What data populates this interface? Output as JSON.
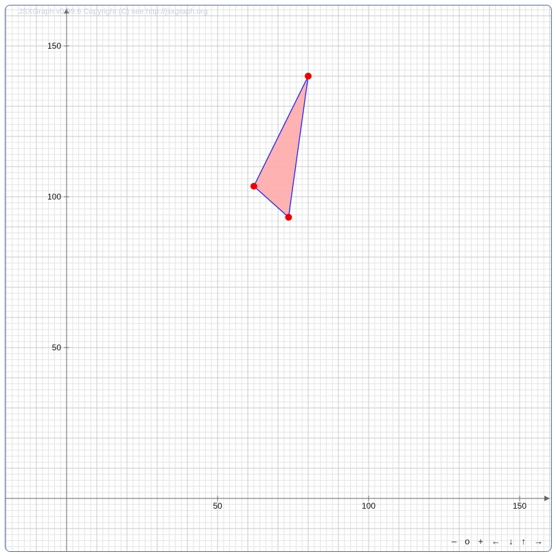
{
  "copyright": "JSXGraph v0.99.6 Copyright (C) see http://jsxgraph.org",
  "navigation": {
    "zoom_out": "–",
    "zoom_reset": "o",
    "zoom_in": "+",
    "left": "←",
    "down": "↓",
    "up": "↑",
    "right": "→"
  },
  "axes": {
    "x_range": [
      -20,
      162
    ],
    "y_range": [
      -17,
      164
    ],
    "x_ticks": [
      "50",
      "100",
      "150"
    ],
    "y_ticks": [
      "50",
      "100",
      "150"
    ]
  },
  "triangle": {
    "vertices": [
      {
        "x": 80.0,
        "y": 140.0
      },
      {
        "x": 62.0,
        "y": 103.5
      },
      {
        "x": 73.5,
        "y": 93.2
      }
    ],
    "fill_color": "#ffaaaa",
    "edge_color": "#2222ee",
    "point_color": "#ee0000"
  }
}
